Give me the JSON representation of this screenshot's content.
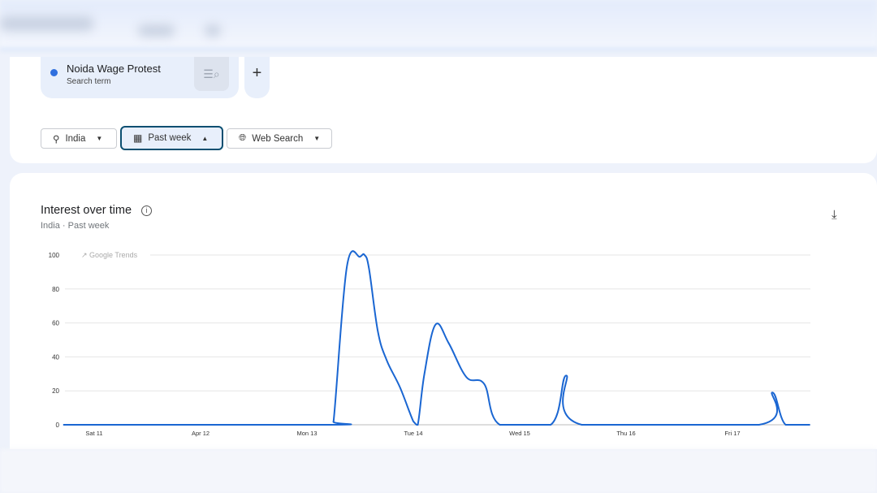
{
  "search_term": {
    "name": "Noida Wage Protest",
    "type": "Search term",
    "color": "#2f6fde",
    "icon": "compare-search-icon",
    "add_icon": "plus-icon"
  },
  "filters": [
    {
      "label": "India",
      "icon": "location-pin-icon"
    },
    {
      "label": "Past week",
      "icon": "calendar-icon",
      "active": true
    },
    {
      "label": "Web Search",
      "icon": "globe-icon"
    }
  ],
  "panel": {
    "title": "Interest over time",
    "subtitle_region": "India",
    "subtitle_sep": "·",
    "subtitle_period": "Past week",
    "watermark": "Google Trends",
    "download_icon": "download-icon",
    "info_icon": "info-icon"
  },
  "chart_data": {
    "type": "line",
    "title": "Interest over time",
    "ylim": [
      0,
      100
    ],
    "yticks": [
      0,
      20,
      40,
      60,
      80,
      100
    ],
    "xticks": [
      "Sat 11",
      "Apr 12",
      "Mon 13",
      "Tue 14",
      "Wed 15",
      "Thu 16",
      "Fri 17"
    ],
    "grid": true,
    "color": "#1a66d2",
    "series": [
      {
        "name": "Noida Wage Protest",
        "points": [
          [
            "Apr 10 17:00",
            0
          ],
          [
            "Apr 13 05:00",
            0
          ],
          [
            "Apr 13 06:00",
            2
          ],
          [
            "Apr 13 09:00",
            93
          ],
          [
            "Apr 13 12:00",
            99
          ],
          [
            "Apr 13 13:00",
            100
          ],
          [
            "Apr 13 14:00",
            92
          ],
          [
            "Apr 13 16:00",
            55
          ],
          [
            "Apr 13 18:00",
            38
          ],
          [
            "Apr 13 21:00",
            22
          ],
          [
            "Apr 14 00:00",
            2
          ],
          [
            "Apr 14 01:00",
            0
          ],
          [
            "Apr 14 02:30",
            30
          ],
          [
            "Apr 14 05:00",
            59
          ],
          [
            "Apr 14 08:00",
            48
          ],
          [
            "Apr 14 12:00",
            28
          ],
          [
            "Apr 14 16:00",
            24
          ],
          [
            "Apr 14 19:30",
            0
          ],
          [
            "Apr 15 07:00",
            0
          ],
          [
            "Apr 15 10:30",
            29
          ],
          [
            "Apr 15 14:00",
            0
          ],
          [
            "Apr 17 06:00",
            0
          ],
          [
            "Apr 17 09:00",
            19
          ],
          [
            "Apr 17 12:00",
            0
          ],
          [
            "Apr 17 17:30",
            0
          ]
        ]
      }
    ]
  }
}
